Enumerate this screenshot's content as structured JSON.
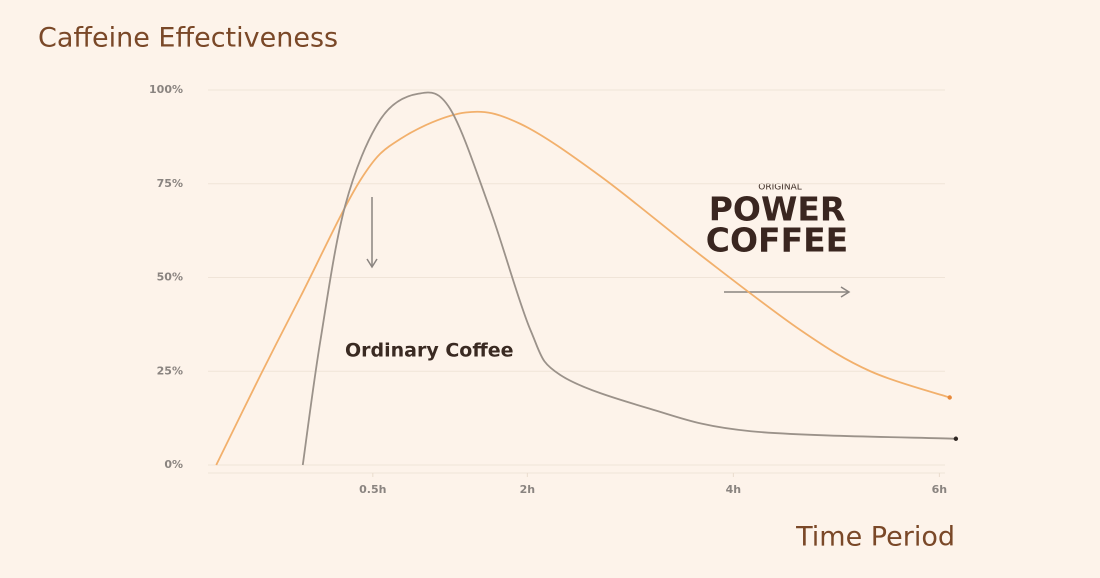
{
  "chart_data": {
    "type": "line",
    "title": "Caffeine Effectiveness",
    "x_label": "Time Period",
    "xlim": [
      -1.1,
      6.2
    ],
    "xticks": [
      {
        "value": 0.5,
        "label": "0.5h"
      },
      {
        "value": 2,
        "label": "2h"
      },
      {
        "value": 4,
        "label": "4h"
      },
      {
        "value": 6,
        "label": "6h"
      }
    ],
    "ylim": [
      0,
      100
    ],
    "yticks": [
      {
        "value": 0,
        "label": "0%"
      },
      {
        "value": 25,
        "label": "25%"
      },
      {
        "value": 50,
        "label": "50%"
      },
      {
        "value": 75,
        "label": "75%"
      },
      {
        "value": 100,
        "label": "100%"
      }
    ],
    "grid": true,
    "series": [
      {
        "color": "#f2b06c",
        "x": [
          -1.02,
          -0.59,
          -0.2,
          0.38,
          0.77,
          1.4,
          1.93,
          2.71,
          3.68,
          4.65,
          5.33,
          6.1
        ],
        "values": [
          0,
          24,
          45,
          76,
          87,
          94,
          91,
          77,
          56,
          36,
          25,
          18
        ]
      },
      {
        "name": "Ordinary Coffee",
        "color": "#9b928a",
        "x": [
          -0.18,
          -0.01,
          0.23,
          0.57,
          0.94,
          1.25,
          1.64,
          2.03,
          2.32,
          3.19,
          4.17,
          6.16
        ],
        "values": [
          0,
          33,
          69,
          92,
          99,
          95,
          68,
          36,
          24,
          15,
          9,
          7
        ]
      }
    ],
    "logo": {
      "top": "ORIGINAL",
      "line1": "POWER",
      "line2": "COFFEE"
    }
  }
}
